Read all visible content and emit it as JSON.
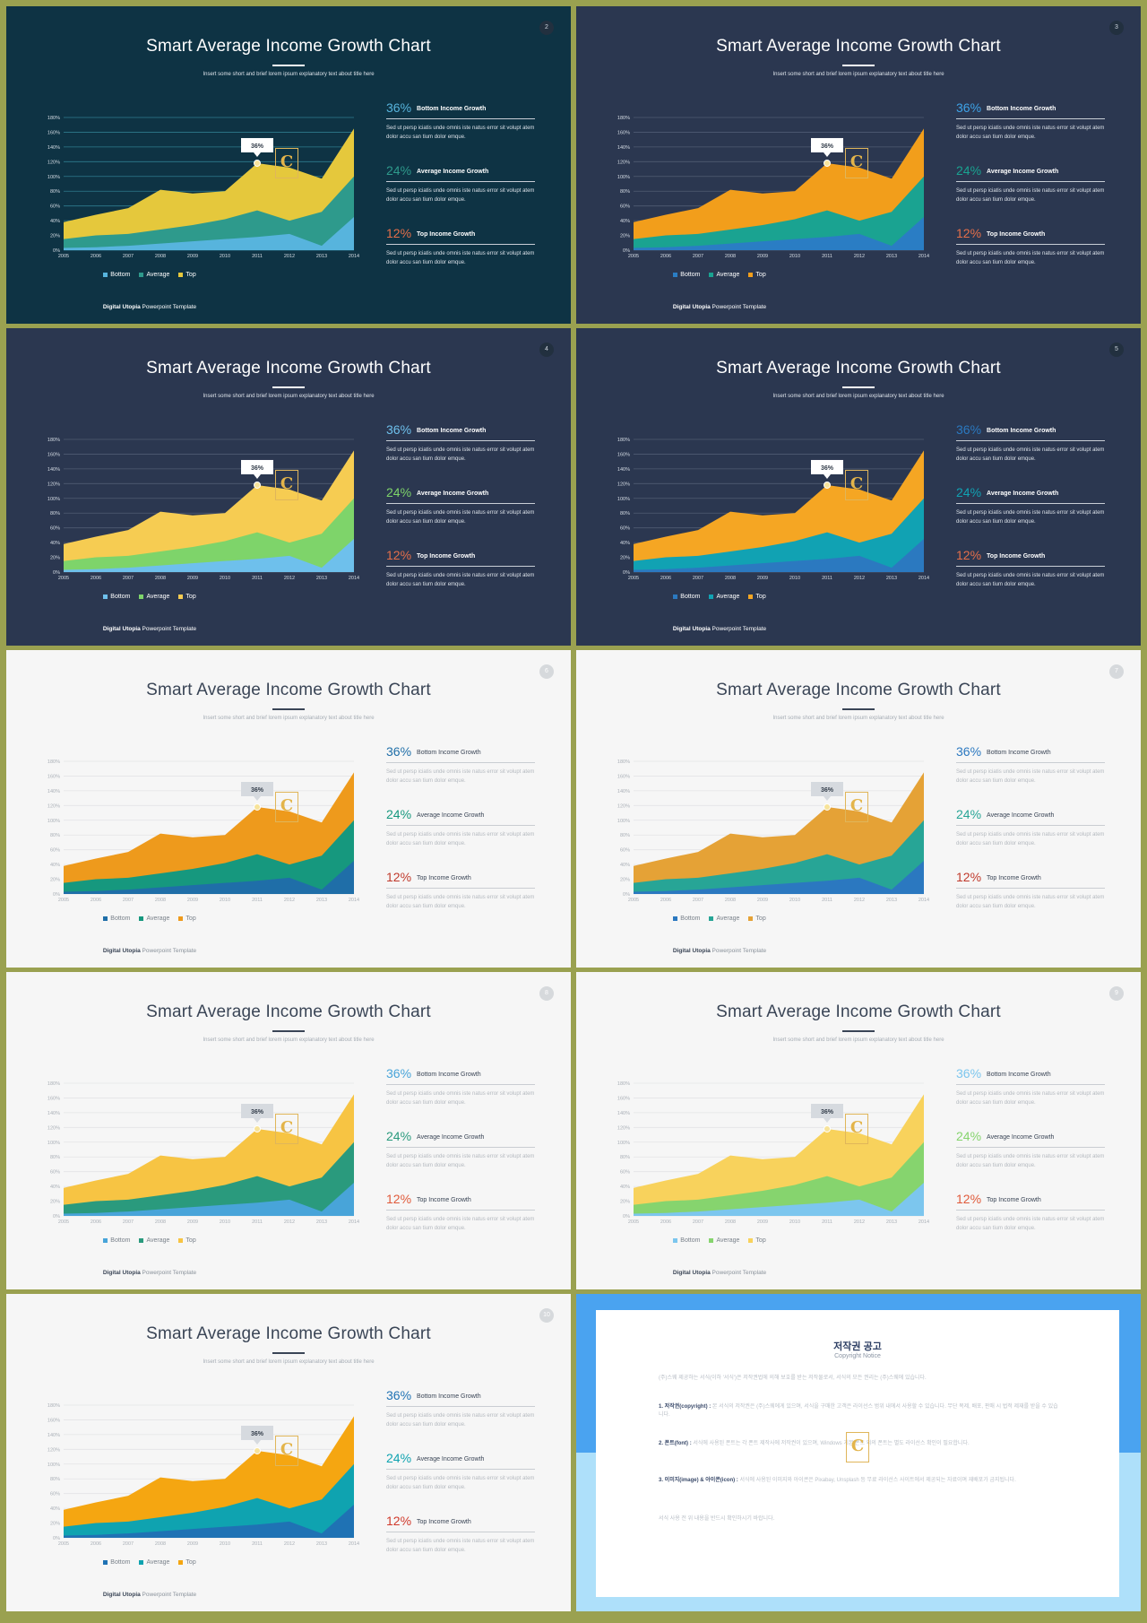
{
  "slide_common": {
    "title": "Smart Average Income Growth Chart",
    "subtitle": "Insert some short and brief lorem ipsum explanatory text about title here",
    "callout": "36%",
    "legend": [
      "Bottom",
      "Average",
      "Top"
    ],
    "stats": [
      {
        "pct": "36%",
        "label": "Bottom Income Growth",
        "body": "Sed ut persp iciatis unde omnis iste natus error sit volupt atem dolor accu san tium dolor emque."
      },
      {
        "pct": "24%",
        "label": "Average Income Growth",
        "body": "Sed ut persp iciatis unde omnis iste natus error sit volupt atem dolor accu san tium dolor emque."
      },
      {
        "pct": "12%",
        "label": "Top Income Growth",
        "body": "Sed ut persp iciatis unde omnis iste natus error sit volupt atem dolor accu san tium dolor emque."
      }
    ],
    "footer_brand": "Digital Utopia",
    "footer_rest": " Powerpoint Template",
    "logo_letter": "C"
  },
  "slides": [
    {
      "page": "2",
      "theme": "dark",
      "bg": "#0e3344",
      "grid": "#2f7c8e",
      "colors": [
        "#57b4dd",
        "#2e9a8c",
        "#e5c83c"
      ],
      "pct_colors": [
        "#57b4dd",
        "#2e9a8c",
        "#e56f4a"
      ]
    },
    {
      "page": "3",
      "theme": "dark",
      "bg": "#2b3750",
      "grid": "#4f5b72",
      "colors": [
        "#2a7dc4",
        "#1aa391",
        "#f29e1b"
      ],
      "pct_colors": [
        "#3ea3e8",
        "#1aa391",
        "#e56f4a"
      ]
    },
    {
      "page": "4",
      "theme": "dark",
      "bg": "#2b3750",
      "grid": "#4f5b72",
      "colors": [
        "#6ec0ec",
        "#7ed46a",
        "#f6cc52"
      ],
      "pct_colors": [
        "#6ec0ec",
        "#7ed46a",
        "#e56f4a"
      ]
    },
    {
      "page": "5",
      "theme": "dark",
      "bg": "#2b3750",
      "grid": "#4f5b72",
      "colors": [
        "#2b79c0",
        "#11a2b3",
        "#f5a623"
      ],
      "pct_colors": [
        "#2b79c0",
        "#11a2b3",
        "#e56f4a"
      ]
    },
    {
      "page": "6",
      "theme": "light",
      "bg": "#f6f6f6",
      "grid": "#e3e4e6",
      "colors": [
        "#1f6ea8",
        "#16987e",
        "#ee9a1c"
      ],
      "pct_colors": [
        "#1f6ea8",
        "#16987e",
        "#c0392b"
      ]
    },
    {
      "page": "7",
      "theme": "light",
      "bg": "#f6f6f6",
      "grid": "#e3e4e6",
      "colors": [
        "#2b78c0",
        "#27a596",
        "#e5a236"
      ],
      "pct_colors": [
        "#2b78c0",
        "#27a596",
        "#c0392b"
      ]
    },
    {
      "page": "8",
      "theme": "light",
      "bg": "#f6f6f6",
      "grid": "#e3e4e6",
      "colors": [
        "#48a4d9",
        "#2a9a7d",
        "#f7c443"
      ],
      "pct_colors": [
        "#48a4d9",
        "#2a9a7d",
        "#e05a3a"
      ]
    },
    {
      "page": "9",
      "theme": "light",
      "bg": "#f6f6f6",
      "grid": "#e3e4e6",
      "colors": [
        "#7cc6ee",
        "#86d46e",
        "#f8d25c"
      ],
      "pct_colors": [
        "#7cc6ee",
        "#86d46e",
        "#e05a3a"
      ]
    },
    {
      "page": "10",
      "theme": "light",
      "bg": "#f6f6f6",
      "grid": "#e3e4e6",
      "colors": [
        "#1f72b4",
        "#0fa3b0",
        "#f5a611"
      ],
      "pct_colors": [
        "#1f72b4",
        "#0fa3b0",
        "#d0392b"
      ]
    }
  ],
  "chart_data": {
    "type": "area",
    "x": [
      "2005",
      "2006",
      "2007",
      "2008",
      "2009",
      "2010",
      "2011",
      "2012",
      "2013",
      "2014"
    ],
    "ylim": [
      0,
      180
    ],
    "y_ticks": [
      "0%",
      "20%",
      "40%",
      "60%",
      "80%",
      "100%",
      "120%",
      "140%",
      "160%",
      "180%"
    ],
    "series": [
      {
        "name": "Bottom",
        "values": [
          3,
          4,
          6,
          9,
          12,
          15,
          18,
          22,
          6,
          45
        ]
      },
      {
        "name": "Average",
        "values": [
          15,
          20,
          22,
          28,
          34,
          42,
          54,
          40,
          52,
          100
        ]
      },
      {
        "name": "Top",
        "values": [
          38,
          48,
          57,
          82,
          77,
          80,
          118,
          112,
          97,
          165
        ]
      }
    ],
    "callout": {
      "label": "36%",
      "x": "2011",
      "y": 118
    }
  },
  "copyright": {
    "title": "저작권 공고",
    "subtitle": "Copyright Notice",
    "paragraphs": [
      {
        "head": "",
        "text": "(주)스웨 제공하는 서식(이하 '서식')은 저작권법에 의해 보호를 받는 저작물로서, 서식의 모든 권리는 (주)스웨에 있습니다."
      },
      {
        "head": "1. 저작권(copyright) :",
        "text": " 본 서식의 저작권은 (주)스웨에게 있으며, 서식을 구매한 고객은 라이선스 범위 내에서 사용할 수 있습니다. 무단 복제, 배포, 판매 시 법적 제재를 받을 수 있습니다."
      },
      {
        "head": "2. 폰트(font) :",
        "text": " 서식에 사용된 폰트는 각 폰트 제작사에 저작권이 있으며, Windows 기본 폰트 외의 폰트는 별도 라이선스 확인이 필요합니다."
      },
      {
        "head": "3. 이미지(image) & 아이콘(icon) :",
        "text": " 서식에 사용된 이미지와 아이콘은 Pixabay, Unsplash 등 무료 라이선스 사이트에서 제공되는 자료이며 재배포가 금지됩니다."
      },
      {
        "head": "",
        "text": "서식 사용 전 위 내용을 반드시 확인하시기 바랍니다."
      }
    ]
  }
}
